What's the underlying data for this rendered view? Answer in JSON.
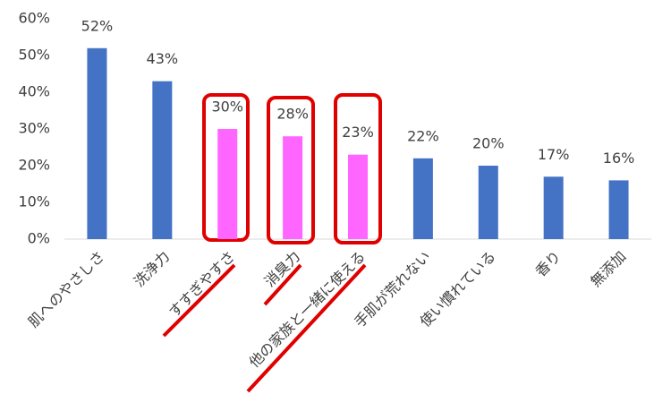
{
  "chart_data": {
    "type": "bar",
    "categories": [
      "肌へのやさしさ",
      "洗浄力",
      "すすぎやすさ",
      "消臭力",
      "他の家族と一緒に使える",
      "手肌が荒れない",
      "使い慣れている",
      "香り",
      "無添加"
    ],
    "values": [
      52,
      43,
      30,
      28,
      23,
      22,
      20,
      17,
      16
    ],
    "value_labels": [
      "52%",
      "43%",
      "30%",
      "28%",
      "23%",
      "22%",
      "20%",
      "17%",
      "16%"
    ],
    "colors": [
      "#4472c4",
      "#4472c4",
      "#ff66ff",
      "#ff66ff",
      "#ff66ff",
      "#4472c4",
      "#4472c4",
      "#4472c4",
      "#4472c4"
    ],
    "ylim": [
      0,
      60
    ],
    "yticks": [
      {
        "value": 0,
        "label": "0%"
      },
      {
        "value": 10,
        "label": "10%"
      },
      {
        "value": 20,
        "label": "20%"
      },
      {
        "value": 30,
        "label": "30%"
      },
      {
        "value": 40,
        "label": "40%"
      },
      {
        "value": 50,
        "label": "50%"
      },
      {
        "value": 60,
        "label": "60%"
      }
    ],
    "grid": false
  }
}
